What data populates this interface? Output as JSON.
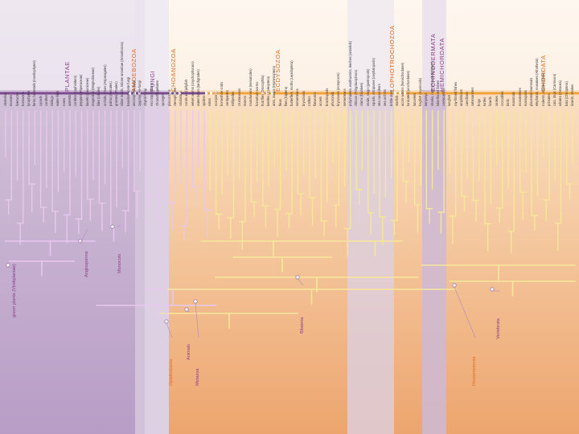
{
  "figure": {
    "colors": {
      "purple_panel": "#ceb9d4",
      "lavender_band": "#e4dbe8",
      "peach_top": "#fce8d4",
      "peach_bottom": "#eeab79",
      "plantae_bar": "#7b4a91",
      "animal_bar": "#f2a33a",
      "tree_purple": "#e8c8ee",
      "tree_yellow": "#f7e79b",
      "group_label": "#e06a1e",
      "clade_label": "#8a3d8a"
    },
    "groups": [
      {
        "name": "PLANTAE",
        "color": "#8a3d8a"
      },
      {
        "name": "AMOEBOZOA",
        "color": "#e06a1e"
      },
      {
        "name": "FUNGI",
        "color": "#8a3d8a"
      },
      {
        "name": "CHOANOZOA",
        "color": "#e06a1e"
      },
      {
        "name": "ECDYSOZOA",
        "color": "#e06a1e"
      },
      {
        "name": "LOPHOTROCHOZOA",
        "color": "#e06a1e"
      },
      {
        "name": "ECHINODERMATA",
        "color": "#8a3d8a"
      },
      {
        "name": "HEMICHORDATA",
        "color": "#8a3d8a"
      },
      {
        "name": "CHORDATA",
        "color": "#e06a1e"
      }
    ],
    "taxa": [
      "cheirolian",
      "mosses",
      "liverworts",
      "hornworts",
      "lycophytes",
      "ferns, horsetails (monilophytes)",
      "cycads",
      "conifers",
      "Ginkgo",
      "water lilies",
      "roses",
      "asterids",
      "conifers (cupholders)",
      "peppers (Piperaceae)",
      "laurels (Lauraceae)",
      "magnolias (Magnoliaceae)",
      "lilies (Liliales)",
      "orchids, irises (Asparagales)",
      "palms (Arecales)",
      "grasses (Poales)",
      "slime molds, lobose amoebae (Amoebozoa)",
      "basidiomycete fungi",
      "ascomycete fungi",
      "zygomycete fungi",
      "chytrid fungi",
      "microsporidians",
      "choanoflagellates",
      "sponges",
      "placozoans",
      "ctenophores",
      "cnidarians",
      "corals and jellyfish",
      "velvet worms (onychophorans)",
      "water bears (tardigrades)",
      "spiders",
      "mites",
      "scorpions",
      "horseshoe crabs",
      "centipedes",
      "millipedes",
      "crustaceans",
      "insects",
      "roundworms (nematodes)",
      "horsehair worms",
      "fruit flies (Drosophila)",
      "beetles (Coleoptera)",
      "ants, wasps (Hymenoptera)",
      "fleas",
      "flies (Diptera)",
      "butterflies, moths (Lepidoptera)",
      "nemerteans",
      "bryozoans",
      "rotifers",
      "flatworms",
      "acoels",
      "brachiopods",
      "phoronids",
      "bryozoans (ectoprocts)",
      "nemerteans",
      "polychaetes, earthworms, leeches (annelids)",
      "chitons (Polyplacophora)",
      "clams (bivalves)",
      "snails, slugs (gastropods)",
      "squids, octopuses (cephalopods)",
      "sea cucumbers",
      "sea urchins",
      "brittle stars",
      "starfish",
      "acorn worms (hemichordates)",
      "tunicates (urochordates)",
      "lancelets",
      "hagfish (myxinoids)",
      "lampreys",
      "sharks, rays (chondrichthyans)",
      "lobe-finned fishes",
      "coelacanths",
      "lungfish",
      "ray-finned fishes",
      "amphibians",
      "caecilians",
      "salamanders",
      "frogs",
      "turtles",
      "lizards",
      "snakes",
      "crocodiles",
      "birds",
      "mammals",
      "monotremes",
      "marsupials",
      "placental mammals",
      "elephants, manatees (Afrotheria)",
      "rodents, rabbits (Glires)",
      "primates",
      "cats, dogs (Carnivora)",
      "whales (Cetacea)",
      "bats (Chiroptera)",
      "lizards, snakes"
    ],
    "clades": [
      {
        "name": "green plants (Viridiplantae)",
        "color": "#8a3d8a"
      },
      {
        "name": "Angiosperms",
        "color": "#8a3d8a"
      },
      {
        "name": "Monocots",
        "color": "#8a3d8a"
      },
      {
        "name": "Opisthokonta",
        "color": "#e06a1e"
      },
      {
        "name": "Animals",
        "color": "#8a3d8a"
      },
      {
        "name": "Metazoa",
        "color": "#8a3d8a"
      },
      {
        "name": "Bilateria",
        "color": "#8a3d8a"
      },
      {
        "name": "Deuterostomia",
        "color": "#e06a1e"
      },
      {
        "name": "Vertebrata",
        "color": "#8a3d8a"
      }
    ]
  }
}
